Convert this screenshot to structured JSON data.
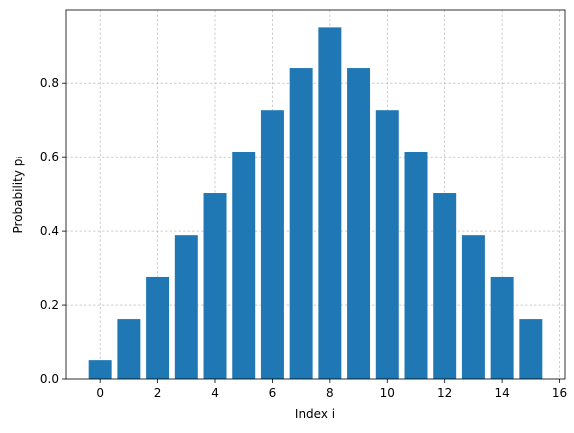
{
  "chart_data": {
    "type": "bar",
    "x": [
      0,
      1,
      2,
      3,
      4,
      5,
      6,
      7,
      8,
      9,
      10,
      11,
      12,
      13,
      14,
      15
    ],
    "values": [
      0.051,
      0.162,
      0.276,
      0.389,
      0.503,
      0.614,
      0.727,
      0.841,
      0.951,
      0.841,
      0.727,
      0.614,
      0.503,
      0.389,
      0.276,
      0.162
    ],
    "color": "#1f77b4",
    "xlabel": "Index i",
    "ylabel": "Probability pᵢ",
    "xlim": [
      -1.19,
      16.19
    ],
    "xticks": [
      0,
      2,
      4,
      6,
      8,
      10,
      12,
      14,
      16
    ],
    "ylim": [
      0,
      0.998
    ],
    "yticks": [
      0.0,
      0.2,
      0.4,
      0.6,
      0.8
    ],
    "grid": true
  }
}
